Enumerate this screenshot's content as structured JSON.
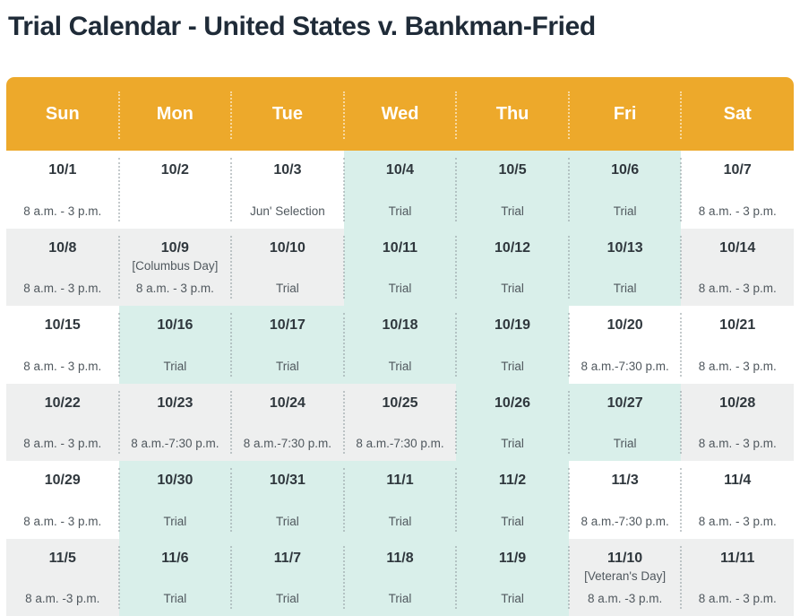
{
  "title": "Trial Calendar - United States v. Bankman-Fried",
  "colors": {
    "accent_orange": "#EDA92B",
    "highlight_teal": "#D9EFEA",
    "row_gray": "#EEEFEF",
    "title_text": "#1F2B38",
    "date_text": "#2F373D",
    "note_text": "#50585E",
    "header_label_text": "#FFFFFF"
  },
  "weekdays": [
    "Sun",
    "Mon",
    "Tue",
    "Wed",
    "Thu",
    "Fri",
    "Sat"
  ],
  "weeks": [
    {
      "shade": "white",
      "days": [
        {
          "date": "10/1",
          "note": "8 a.m. - 3 p.m.",
          "highlight": false
        },
        {
          "date": "10/2",
          "note": "",
          "highlight": false
        },
        {
          "date": "10/3",
          "note": "Jun' Selection",
          "highlight": false
        },
        {
          "date": "10/4",
          "note": "Trial",
          "highlight": true
        },
        {
          "date": "10/5",
          "note": "Trial",
          "highlight": true
        },
        {
          "date": "10/6",
          "note": "Trial",
          "highlight": true
        },
        {
          "date": "10/7",
          "note": "8 a.m. - 3 p.m.",
          "highlight": false
        }
      ]
    },
    {
      "shade": "gray",
      "days": [
        {
          "date": "10/8",
          "note": "8 a.m. - 3 p.m.",
          "highlight": false
        },
        {
          "date": "10/9",
          "holiday": "[Columbus Day]",
          "note": "8 a.m. - 3 p.m.",
          "highlight": false
        },
        {
          "date": "10/10",
          "note": "Trial",
          "highlight": false
        },
        {
          "date": "10/11",
          "note": "Trial",
          "highlight": true
        },
        {
          "date": "10/12",
          "note": "Trial",
          "highlight": true
        },
        {
          "date": "10/13",
          "note": "Trial",
          "highlight": true
        },
        {
          "date": "10/14",
          "note": "8 a.m. - 3 p.m.",
          "highlight": false
        }
      ]
    },
    {
      "shade": "white",
      "days": [
        {
          "date": "10/15",
          "note": "8 a.m. - 3 p.m.",
          "highlight": false
        },
        {
          "date": "10/16",
          "note": "Trial",
          "highlight": true
        },
        {
          "date": "10/17",
          "note": "Trial",
          "highlight": true
        },
        {
          "date": "10/18",
          "note": "Trial",
          "highlight": true
        },
        {
          "date": "10/19",
          "note": "Trial",
          "highlight": true
        },
        {
          "date": "10/20",
          "note": "8 a.m.-7:30 p.m.",
          "highlight": false
        },
        {
          "date": "10/21",
          "note": "8 a.m. - 3 p.m.",
          "highlight": false
        }
      ]
    },
    {
      "shade": "gray",
      "days": [
        {
          "date": "10/22",
          "note": "8 a.m. - 3 p.m.",
          "highlight": false
        },
        {
          "date": "10/23",
          "note": "8 a.m.-7:30 p.m.",
          "highlight": false
        },
        {
          "date": "10/24",
          "note": "8 a.m.-7:30 p.m.",
          "highlight": false
        },
        {
          "date": "10/25",
          "note": "8 a.m.-7:30 p.m.",
          "highlight": false
        },
        {
          "date": "10/26",
          "note": "Trial",
          "highlight": true
        },
        {
          "date": "10/27",
          "note": "Trial",
          "highlight": true
        },
        {
          "date": "10/28",
          "note": "8 a.m. - 3 p.m.",
          "highlight": false
        }
      ]
    },
    {
      "shade": "white",
      "days": [
        {
          "date": "10/29",
          "note": "8 a.m. - 3 p.m.",
          "highlight": false
        },
        {
          "date": "10/30",
          "note": "Trial",
          "highlight": true
        },
        {
          "date": "10/31",
          "note": "Trial",
          "highlight": true
        },
        {
          "date": "11/1",
          "note": "Trial",
          "highlight": true
        },
        {
          "date": "11/2",
          "note": "Trial",
          "highlight": true
        },
        {
          "date": "11/3",
          "note": "8 a.m.-7:30 p.m.",
          "highlight": false
        },
        {
          "date": "11/4",
          "note": "8 a.m. - 3 p.m.",
          "highlight": false
        }
      ]
    },
    {
      "shade": "gray",
      "days": [
        {
          "date": "11/5",
          "note": "8 a.m. -3 p.m.",
          "highlight": false
        },
        {
          "date": "11/6",
          "note": "Trial",
          "highlight": true
        },
        {
          "date": "11/7",
          "note": "Trial",
          "highlight": true
        },
        {
          "date": "11/8",
          "note": "Trial",
          "highlight": true
        },
        {
          "date": "11/9",
          "note": "Trial",
          "highlight": true
        },
        {
          "date": "11/10",
          "holiday": "[Veteran's Day]",
          "note": "8 a.m. -3 p.m.",
          "highlight": false
        },
        {
          "date": "11/11",
          "note": "8 a.m. - 3 p.m.",
          "highlight": false
        }
      ]
    }
  ]
}
